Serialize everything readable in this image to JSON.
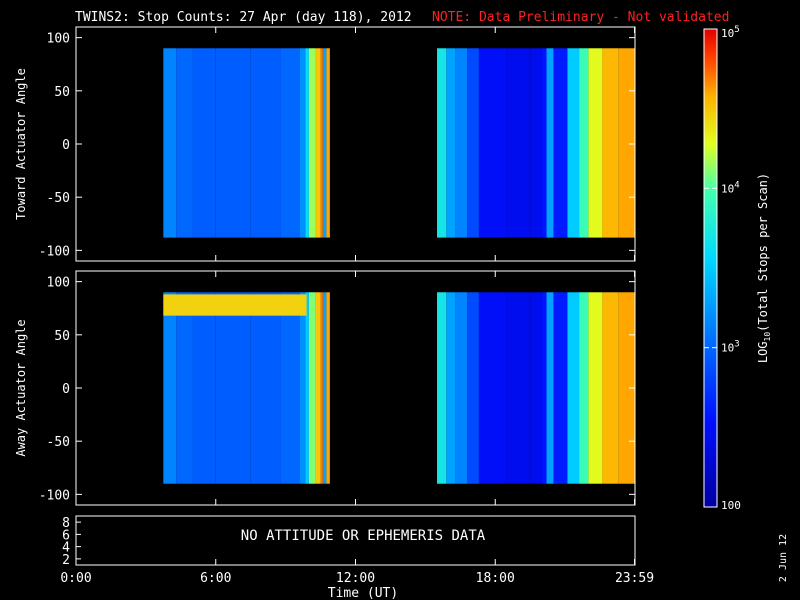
{
  "chart_data": {
    "type": "heatmap",
    "title": "TWINS2: Stop Counts: 27 Apr (day 118), 2012",
    "note": "NOTE: Data Preliminary - Not validated",
    "colors": {
      "note": "#ff2020",
      "background": "#000000",
      "axes": "#ffffff"
    },
    "panels": [
      {
        "name": "toward",
        "ylabel": "Toward Actuator Angle",
        "ylim": [
          -110,
          110
        ],
        "yticks": [
          100,
          50,
          0,
          -50,
          -100
        ],
        "data_yrange": [
          -88,
          90
        ],
        "blocks": [
          {
            "t_start": 3.75,
            "t_end": 10.9,
            "columns": [
              [
                3.75,
                3.15
              ],
              [
                4.3,
                3.0
              ],
              [
                5.0,
                2.95
              ],
              [
                6.0,
                2.95
              ],
              [
                7.5,
                2.95
              ],
              [
                8.8,
                3.0
              ],
              [
                9.6,
                3.2
              ],
              [
                9.85,
                3.6
              ],
              [
                10.0,
                4.15
              ],
              [
                10.3,
                4.5
              ],
              [
                10.5,
                4.7
              ],
              [
                10.6,
                3.3
              ],
              [
                10.75,
                4.6
              ],
              [
                10.9,
                4.6
              ]
            ]
          },
          {
            "t_start": 15.5,
            "t_end": 23.98,
            "columns": [
              [
                15.5,
                3.7
              ],
              [
                15.9,
                3.3
              ],
              [
                16.3,
                3.15
              ],
              [
                16.8,
                2.85
              ],
              [
                17.3,
                2.5
              ],
              [
                18.5,
                2.45
              ],
              [
                19.5,
                2.45
              ],
              [
                20.0,
                2.55
              ],
              [
                20.2,
                3.3
              ],
              [
                20.5,
                2.6
              ],
              [
                21.1,
                3.5
              ],
              [
                21.6,
                3.95
              ],
              [
                22.0,
                4.3
              ],
              [
                22.6,
                4.55
              ],
              [
                23.3,
                4.6
              ],
              [
                23.98,
                4.6
              ]
            ]
          }
        ]
      },
      {
        "name": "away",
        "ylabel": "Away Actuator Angle",
        "ylim": [
          -110,
          110
        ],
        "yticks": [
          100,
          50,
          0,
          -50,
          -100
        ],
        "data_yrange": [
          -90,
          90
        ],
        "blocks": [
          {
            "t_start": 3.75,
            "t_end": 10.9,
            "columns": [
              [
                3.75,
                3.15
              ],
              [
                4.3,
                3.0
              ],
              [
                5.0,
                2.95
              ],
              [
                6.0,
                2.95
              ],
              [
                7.5,
                2.95
              ],
              [
                8.8,
                3.0
              ],
              [
                9.6,
                3.2
              ],
              [
                9.85,
                3.5
              ],
              [
                10.0,
                4.1
              ],
              [
                10.3,
                4.5
              ],
              [
                10.5,
                4.7
              ],
              [
                10.6,
                3.3
              ],
              [
                10.75,
                4.6
              ],
              [
                10.9,
                4.6
              ]
            ],
            "band": {
              "y_from": 68,
              "y_to": 88,
              "log_counts": 4.45
            }
          },
          {
            "t_start": 15.5,
            "t_end": 23.98,
            "columns": [
              [
                15.5,
                3.7
              ],
              [
                15.9,
                3.3
              ],
              [
                16.3,
                3.15
              ],
              [
                16.8,
                2.85
              ],
              [
                17.3,
                2.5
              ],
              [
                18.5,
                2.45
              ],
              [
                19.5,
                2.45
              ],
              [
                20.0,
                2.55
              ],
              [
                20.2,
                3.3
              ],
              [
                20.5,
                2.6
              ],
              [
                21.1,
                3.5
              ],
              [
                21.6,
                3.95
              ],
              [
                22.0,
                4.3
              ],
              [
                22.6,
                4.55
              ],
              [
                23.3,
                4.6
              ],
              [
                23.98,
                4.6
              ]
            ]
          }
        ]
      }
    ],
    "attitude_panel": {
      "yticks": [
        8,
        6,
        4,
        2
      ],
      "message": "NO ATTITUDE OR EPHEMERIS DATA"
    },
    "xaxis": {
      "label": "Time (UT)",
      "xlim": [
        0,
        24
      ],
      "ticks": [
        {
          "v": 0,
          "label": "0:00"
        },
        {
          "v": 6,
          "label": "6:00"
        },
        {
          "v": 12,
          "label": "12:00"
        },
        {
          "v": 18,
          "label": "18:00"
        },
        {
          "v": 23.98,
          "label": "23:59"
        }
      ]
    },
    "colorbar": {
      "label": "LOG10(Total Stops per Scan)",
      "label_prefix": "LOG",
      "label_sub": "10",
      "label_suffix": "(Total Stops per Scan)",
      "scale": "log",
      "range": [
        100,
        100000
      ],
      "ticks": [
        {
          "log": 5,
          "base": "10",
          "exp": "5"
        },
        {
          "log": 4,
          "base": "10",
          "exp": "4"
        },
        {
          "log": 3,
          "base": "10",
          "exp": "3"
        },
        {
          "log": 2,
          "base": "100",
          "exp": ""
        }
      ]
    },
    "date_stamp": "2 Jun 12"
  }
}
